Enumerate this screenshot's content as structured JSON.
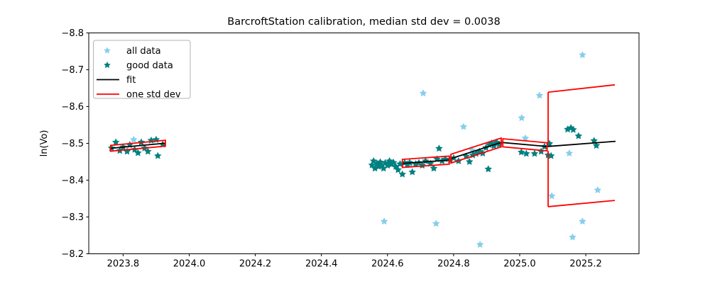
{
  "chart_data": {
    "type": "scatter",
    "title": "BarcroftStation calibration, median std dev = 0.0038",
    "xlabel": "",
    "ylabel": "ln(Vo)",
    "xlim": [
      2023.696,
      2025.361
    ],
    "ylim_top_to_bottom": [
      -8.8,
      -8.2
    ],
    "y_axis_inverted": true,
    "grid": false,
    "x_ticks": {
      "values": [
        2023.8,
        2024.0,
        2024.2,
        2024.4,
        2024.6,
        2024.8,
        2025.0,
        2025.2
      ],
      "labels": [
        "2023.8",
        "2024.0",
        "2024.2",
        "2024.4",
        "2024.6",
        "2024.8",
        "2025.0",
        "2025.2"
      ]
    },
    "y_ticks": {
      "values": [
        -8.8,
        -8.7,
        -8.6,
        -8.5,
        -8.4,
        -8.3,
        -8.2
      ],
      "labels": [
        "−8.8",
        "−8.7",
        "−8.6",
        "−8.5",
        "−8.4",
        "−8.3",
        "−8.2"
      ]
    },
    "legend": {
      "position": "upper-left",
      "entries": [
        {
          "label": "all data",
          "marker": "star",
          "color": "#87ceeb"
        },
        {
          "label": "good data",
          "marker": "star",
          "color": "#008080"
        },
        {
          "label": "fit",
          "marker": "line",
          "color": "#000000"
        },
        {
          "label": "one std dev",
          "marker": "line",
          "color": "#ff0000"
        }
      ]
    },
    "series": [
      {
        "name": "all data",
        "type": "scatter",
        "marker": "star",
        "color": "#87ceeb",
        "points": [
          [
            2023.832,
            -8.51
          ],
          [
            2024.59,
            -8.288
          ],
          [
            2024.668,
            -8.441
          ],
          [
            2024.708,
            -8.636
          ],
          [
            2024.747,
            -8.282
          ],
          [
            2024.83,
            -8.545
          ],
          [
            2024.856,
            -8.482
          ],
          [
            2024.88,
            -8.225
          ],
          [
            2025.006,
            -8.569
          ],
          [
            2025.017,
            -8.514
          ],
          [
            2025.06,
            -8.63
          ],
          [
            2025.097,
            -8.357
          ],
          [
            2025.15,
            -8.473
          ],
          [
            2025.16,
            -8.245
          ],
          [
            2025.19,
            -8.74
          ],
          [
            2025.19,
            -8.288
          ],
          [
            2025.236,
            -8.373
          ]
        ]
      },
      {
        "name": "good data",
        "type": "scatter",
        "marker": "star",
        "color": "#008080",
        "points": [
          [
            2023.765,
            -8.487
          ],
          [
            2023.778,
            -8.503
          ],
          [
            2023.79,
            -8.48
          ],
          [
            2023.8,
            -8.49
          ],
          [
            2023.812,
            -8.478
          ],
          [
            2023.82,
            -8.496
          ],
          [
            2023.835,
            -8.483
          ],
          [
            2023.845,
            -8.474
          ],
          [
            2023.855,
            -8.503
          ],
          [
            2023.865,
            -8.487
          ],
          [
            2023.875,
            -8.478
          ],
          [
            2023.885,
            -8.508
          ],
          [
            2023.9,
            -8.51
          ],
          [
            2023.905,
            -8.466
          ],
          [
            2023.92,
            -8.497
          ],
          [
            2024.553,
            -8.441
          ],
          [
            2024.558,
            -8.452
          ],
          [
            2024.562,
            -8.432
          ],
          [
            2024.568,
            -8.445
          ],
          [
            2024.573,
            -8.437
          ],
          [
            2024.578,
            -8.449
          ],
          [
            2024.583,
            -8.44
          ],
          [
            2024.588,
            -8.432
          ],
          [
            2024.593,
            -8.447
          ],
          [
            2024.6,
            -8.44
          ],
          [
            2024.606,
            -8.452
          ],
          [
            2024.612,
            -8.443
          ],
          [
            2024.618,
            -8.448
          ],
          [
            2024.625,
            -8.437
          ],
          [
            2024.632,
            -8.428
          ],
          [
            2024.638,
            -8.444
          ],
          [
            2024.645,
            -8.416
          ],
          [
            2024.652,
            -8.447
          ],
          [
            2024.66,
            -8.443
          ],
          [
            2024.667,
            -8.448
          ],
          [
            2024.675,
            -8.422
          ],
          [
            2024.685,
            -8.444
          ],
          [
            2024.695,
            -8.447
          ],
          [
            2024.705,
            -8.44
          ],
          [
            2024.715,
            -8.452
          ],
          [
            2024.73,
            -8.445
          ],
          [
            2024.74,
            -8.432
          ],
          [
            2024.75,
            -8.457
          ],
          [
            2024.756,
            -8.486
          ],
          [
            2024.765,
            -8.452
          ],
          [
            2024.775,
            -8.457
          ],
          [
            2024.79,
            -8.455
          ],
          [
            2024.8,
            -8.46
          ],
          [
            2024.815,
            -8.452
          ],
          [
            2024.838,
            -8.465
          ],
          [
            2024.848,
            -8.45
          ],
          [
            2024.858,
            -8.468
          ],
          [
            2024.868,
            -8.472
          ],
          [
            2024.878,
            -8.478
          ],
          [
            2024.888,
            -8.473
          ],
          [
            2024.898,
            -8.488
          ],
          [
            2024.905,
            -8.43
          ],
          [
            2024.908,
            -8.496
          ],
          [
            2024.915,
            -8.5
          ],
          [
            2024.922,
            -8.493
          ],
          [
            2024.93,
            -8.503
          ],
          [
            2024.938,
            -8.497
          ],
          [
            2025.005,
            -8.476
          ],
          [
            2025.02,
            -8.472
          ],
          [
            2025.045,
            -8.472
          ],
          [
            2025.065,
            -8.478
          ],
          [
            2025.075,
            -8.491
          ],
          [
            2025.086,
            -8.468
          ],
          [
            2025.09,
            -8.499
          ],
          [
            2025.095,
            -8.466
          ],
          [
            2025.145,
            -8.538
          ],
          [
            2025.155,
            -8.542
          ],
          [
            2025.162,
            -8.537
          ],
          [
            2025.178,
            -8.52
          ],
          [
            2025.225,
            -8.507
          ],
          [
            2025.232,
            -8.494
          ]
        ]
      },
      {
        "name": "fit",
        "type": "line",
        "color": "#000000",
        "linewidth": 1.8,
        "segments": [
          [
            [
              2023.762,
              -8.4865
            ],
            [
              2023.928,
              -8.5005
            ]
          ],
          [
            [
              2024.645,
              -8.4455
            ],
            [
              2024.787,
              -8.4545
            ]
          ],
          [
            [
              2024.792,
              -8.4585
            ],
            [
              2024.944,
              -8.5025
            ],
            [
              2025.083,
              -8.4915
            ],
            [
              2025.29,
              -8.5055
            ]
          ]
        ]
      },
      {
        "name": "one std dev",
        "type": "envelope",
        "color": "#ff0000",
        "linewidth": 1.8,
        "segments": [
          {
            "closed": true,
            "upper": [
              [
                2023.762,
                -8.4945
              ],
              [
                2023.928,
                -8.5085
              ]
            ],
            "lower": [
              [
                2023.762,
                -8.4785
              ],
              [
                2023.928,
                -8.4925
              ]
            ]
          },
          {
            "closed": true,
            "upper": [
              [
                2024.645,
                -8.4565
              ],
              [
                2024.787,
                -8.4655
              ]
            ],
            "lower": [
              [
                2024.645,
                -8.4345
              ],
              [
                2024.787,
                -8.4435
              ]
            ]
          },
          {
            "closed": true,
            "upper": [
              [
                2024.792,
                -8.4705
              ],
              [
                2024.944,
                -8.5145
              ]
            ],
            "lower": [
              [
                2024.792,
                -8.4465
              ],
              [
                2024.944,
                -8.4905
              ]
            ]
          },
          {
            "closed": true,
            "upper": [
              [
                2024.949,
                -8.5125
              ],
              [
                2025.083,
                -8.5015
              ]
            ],
            "lower": [
              [
                2024.949,
                -8.4905
              ],
              [
                2025.083,
                -8.4795
              ]
            ]
          },
          {
            "closed": false,
            "upper": [
              [
                2025.086,
                -8.639
              ],
              [
                2025.288,
                -8.659
              ]
            ],
            "lower": [
              [
                2025.086,
                -8.328
              ],
              [
                2025.288,
                -8.345
              ]
            ]
          }
        ],
        "connectors": [
          [
            [
              2025.086,
              -8.639
            ],
            [
              2025.086,
              -8.5015
            ]
          ],
          [
            [
              2025.086,
              -8.4795
            ],
            [
              2025.086,
              -8.328
            ]
          ]
        ]
      }
    ]
  }
}
